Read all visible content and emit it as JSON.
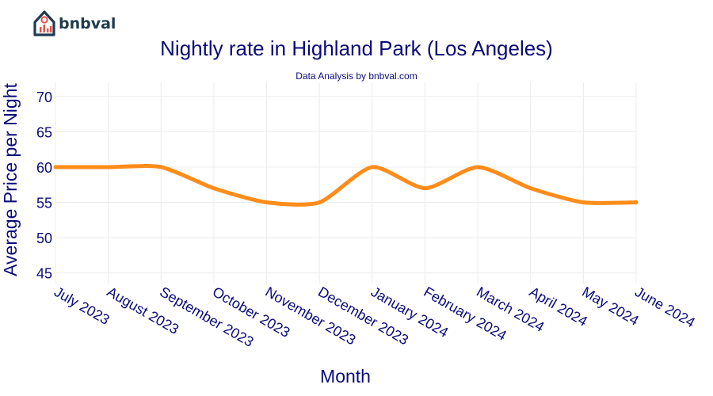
{
  "brand": {
    "name": "bnbval",
    "icon": "house-chart-icon",
    "color": "#1f3b4d",
    "accent": "#e8534a"
  },
  "chart_data": {
    "type": "line",
    "title": "Nightly rate in Highland Park (Los Angeles)",
    "subtitle": "Data Analysis by bnbval.com",
    "xlabel": "Month",
    "ylabel": "Average Price per Night",
    "categories": [
      "July 2023",
      "August 2023",
      "September 2023",
      "October 2023",
      "November 2023",
      "December 2023",
      "January 2024",
      "February 2024",
      "March 2024",
      "April 2024",
      "May 2024",
      "June 2024"
    ],
    "series": [
      {
        "values": [
          60,
          60,
          60,
          57,
          55,
          55,
          60,
          57,
          60,
          57,
          55,
          55
        ],
        "color": "#ff8c1a"
      }
    ],
    "ylim": [
      43.5,
      72
    ],
    "yticks": [
      45,
      50,
      55,
      60,
      65,
      70
    ],
    "grid": true,
    "legend": "none",
    "colors": {
      "text": "#0b0b7a",
      "grid": "#ececec"
    }
  }
}
